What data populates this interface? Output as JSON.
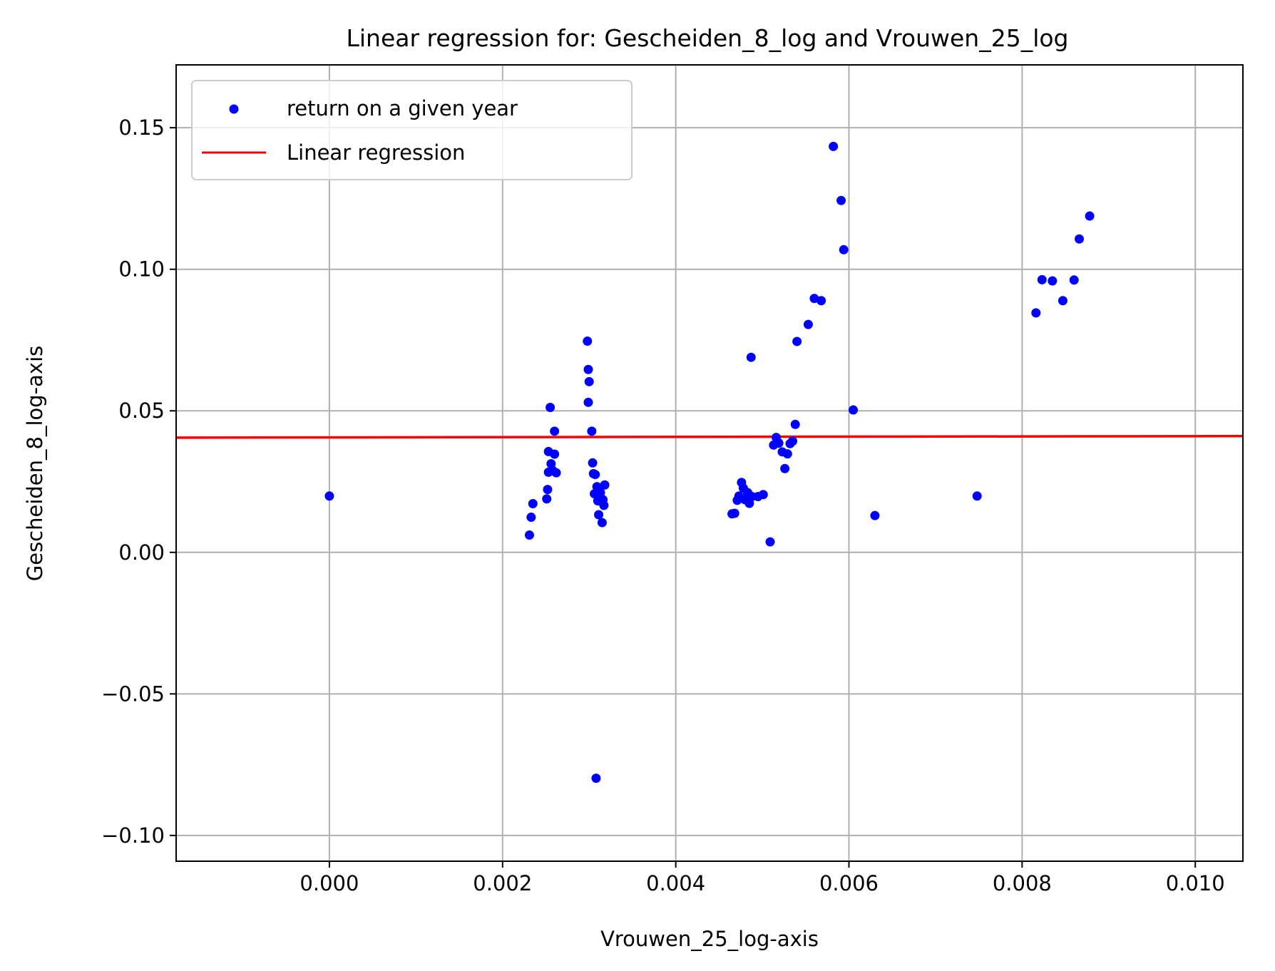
{
  "chart_data": {
    "type": "scatter",
    "title": "Linear regression for: Gescheiden_8_log and Vrouwen_25_log",
    "xlabel": "Vrouwen_25_log-axis",
    "ylabel": "Gescheiden_8_log-axis",
    "xlim": [
      -0.00177,
      0.01055
    ],
    "ylim": [
      -0.1091,
      0.1722
    ],
    "x_ticks": [
      0.0,
      0.002,
      0.004,
      0.006,
      0.008,
      0.01
    ],
    "x_tick_labels": [
      "0.000",
      "0.002",
      "0.004",
      "0.006",
      "0.008",
      "0.010"
    ],
    "y_ticks": [
      -0.1,
      -0.05,
      0.0,
      0.05,
      0.1,
      0.15
    ],
    "y_tick_labels": [
      "−0.10",
      "−0.05",
      "0.00",
      "0.05",
      "0.10",
      "0.15"
    ],
    "grid": true,
    "legend_position": "upper-left",
    "colors": {
      "points": "#0000ff",
      "line": "#ff0000",
      "grid": "#b0b0b0"
    },
    "series": [
      {
        "name": "return on a given year",
        "kind": "scatter",
        "points": [
          [
            0.0,
            0.0199
          ],
          [
            0.00231,
            0.0061
          ],
          [
            0.00233,
            0.0124
          ],
          [
            0.00235,
            0.0172
          ],
          [
            0.00251,
            0.0189
          ],
          [
            0.00252,
            0.0222
          ],
          [
            0.00253,
            0.0283
          ],
          [
            0.00253,
            0.0356
          ],
          [
            0.00255,
            0.0512
          ],
          [
            0.00256,
            0.0313
          ],
          [
            0.00258,
            0.0289
          ],
          [
            0.0026,
            0.0428
          ],
          [
            0.0026,
            0.0347
          ],
          [
            0.00262,
            0.0281
          ],
          [
            0.00298,
            0.0746
          ],
          [
            0.00299,
            0.0646
          ],
          [
            0.00299,
            0.053
          ],
          [
            0.003,
            0.0603
          ],
          [
            0.00303,
            0.0428
          ],
          [
            0.00304,
            0.0316
          ],
          [
            0.00305,
            0.0278
          ],
          [
            0.00306,
            0.0207
          ],
          [
            0.00307,
            0.0275
          ],
          [
            0.00308,
            -0.0798
          ],
          [
            0.00309,
            0.0232
          ],
          [
            0.0031,
            0.0182
          ],
          [
            0.00311,
            0.0133
          ],
          [
            0.00312,
            0.0198
          ],
          [
            0.00313,
            0.0211
          ],
          [
            0.00315,
            0.0105
          ],
          [
            0.00316,
            0.0186
          ],
          [
            0.00317,
            0.0166
          ],
          [
            0.00318,
            0.0238
          ],
          [
            0.00465,
            0.0136
          ],
          [
            0.00468,
            0.0138
          ],
          [
            0.00471,
            0.0184
          ],
          [
            0.00473,
            0.0199
          ],
          [
            0.00476,
            0.0247
          ],
          [
            0.00478,
            0.0227
          ],
          [
            0.0048,
            0.0186
          ],
          [
            0.00483,
            0.0211
          ],
          [
            0.00485,
            0.0173
          ],
          [
            0.00487,
            0.0689
          ],
          [
            0.00488,
            0.0197
          ],
          [
            0.00495,
            0.0197
          ],
          [
            0.00501,
            0.0204
          ],
          [
            0.00509,
            0.0037
          ],
          [
            0.00513,
            0.0379
          ],
          [
            0.00516,
            0.0406
          ],
          [
            0.00519,
            0.0386
          ],
          [
            0.00523,
            0.0355
          ],
          [
            0.00526,
            0.0296
          ],
          [
            0.00529,
            0.0348
          ],
          [
            0.00532,
            0.0384
          ],
          [
            0.00535,
            0.0393
          ],
          [
            0.00538,
            0.0452
          ],
          [
            0.0054,
            0.0745
          ],
          [
            0.00553,
            0.0805
          ],
          [
            0.0056,
            0.0897
          ],
          [
            0.00568,
            0.0889
          ],
          [
            0.00582,
            0.1434
          ],
          [
            0.00591,
            0.1243
          ],
          [
            0.00594,
            0.1069
          ],
          [
            0.00605,
            0.0503
          ],
          [
            0.0063,
            0.013
          ],
          [
            0.00748,
            0.0199
          ],
          [
            0.00816,
            0.0846
          ],
          [
            0.00823,
            0.0963
          ],
          [
            0.00835,
            0.0959
          ],
          [
            0.00847,
            0.0889
          ],
          [
            0.0086,
            0.0962
          ],
          [
            0.00866,
            0.1107
          ],
          [
            0.00878,
            0.1188
          ]
        ]
      },
      {
        "name": "Linear regression",
        "kind": "line",
        "intercept": 0.0406,
        "slope": 0.045
      }
    ]
  }
}
